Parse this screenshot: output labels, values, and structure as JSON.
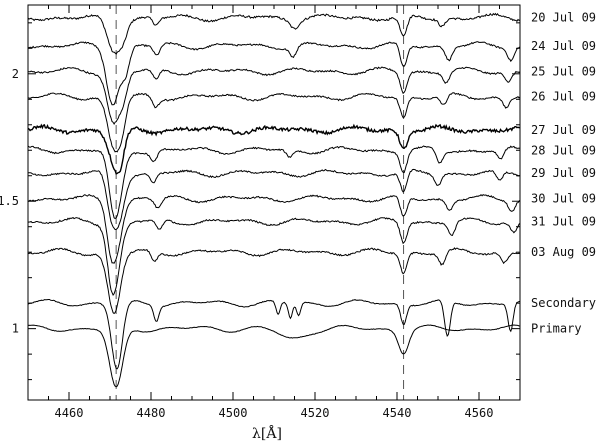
{
  "chart_data": {
    "type": "line",
    "title": "",
    "xlabel": "λ[Å]",
    "ylabel": "",
    "xlim": [
      4450,
      4570
    ],
    "ylim": [
      0.72,
      2.27
    ],
    "x_ticks": [
      4460,
      4480,
      4500,
      4520,
      4540,
      4560
    ],
    "y_ticks": [
      1,
      1.5,
      2
    ],
    "y_tick_labels": [
      "1",
      "1.5",
      "2"
    ],
    "reference_lines": [
      4471.5,
      4541.6
    ],
    "grid": false,
    "series": [
      {
        "name": "20 Jul 09",
        "offset": 2.22,
        "noise": 0.004,
        "lines": [
          [
            4470.9,
            0.13,
            1.6
          ],
          [
            4473.3,
            0.05,
            1.0
          ],
          [
            4481.2,
            0.03,
            0.8
          ],
          [
            4541.6,
            0.08,
            0.9
          ],
          [
            4551.0,
            0.03,
            0.8
          ],
          [
            4515.0,
            0.03,
            1.0
          ]
        ]
      },
      {
        "name": "24 Jul 09",
        "offset": 2.11,
        "noise": 0.003,
        "lines": [
          [
            4470.7,
            0.22,
            1.5
          ],
          [
            4473.8,
            0.1,
            1.0
          ],
          [
            4481.4,
            0.04,
            0.8
          ],
          [
            4514.7,
            0.04,
            0.8
          ],
          [
            4541.6,
            0.09,
            0.8
          ],
          [
            4552.6,
            0.05,
            0.8
          ],
          [
            4567.8,
            0.05,
            0.8
          ]
        ]
      },
      {
        "name": "25 Jul 09",
        "offset": 2.01,
        "noise": 0.003,
        "lines": [
          [
            4470.9,
            0.2,
            1.5
          ],
          [
            4473.4,
            0.08,
            1.0
          ],
          [
            4481.2,
            0.04,
            0.8
          ],
          [
            4541.6,
            0.08,
            0.8
          ],
          [
            4552.0,
            0.04,
            0.8
          ],
          [
            4567.2,
            0.04,
            0.8
          ]
        ]
      },
      {
        "name": "26 Jul 09",
        "offset": 1.91,
        "noise": 0.003,
        "lines": [
          [
            4471.0,
            0.2,
            1.5
          ],
          [
            4473.0,
            0.08,
            1.0
          ],
          [
            4481.1,
            0.04,
            0.8
          ],
          [
            4541.6,
            0.08,
            0.8
          ],
          [
            4551.4,
            0.04,
            0.8
          ],
          [
            4566.6,
            0.04,
            0.8
          ]
        ]
      },
      {
        "name": "27 Jul 09",
        "offset": 1.78,
        "noise": 0.006,
        "lines": [
          [
            4471.3,
            0.14,
            1.6
          ],
          [
            4472.6,
            0.06,
            1.0
          ],
          [
            4541.6,
            0.07,
            0.9
          ]
        ]
      },
      {
        "name": "28 Jul 09",
        "offset": 1.7,
        "noise": 0.003,
        "lines": [
          [
            4471.6,
            0.24,
            1.5
          ],
          [
            4470.5,
            0.06,
            1.0
          ],
          [
            4480.7,
            0.04,
            0.8
          ],
          [
            4513.8,
            0.03,
            0.8
          ],
          [
            4541.6,
            0.08,
            0.8
          ],
          [
            4550.4,
            0.05,
            0.8
          ],
          [
            4565.3,
            0.04,
            0.8
          ]
        ]
      },
      {
        "name": "29 Jul 09",
        "offset": 1.61,
        "noise": 0.003,
        "lines": [
          [
            4471.8,
            0.2,
            1.5
          ],
          [
            4469.9,
            0.08,
            1.0
          ],
          [
            4480.5,
            0.04,
            0.8
          ],
          [
            4541.6,
            0.08,
            0.8
          ],
          [
            4550.0,
            0.04,
            0.8
          ],
          [
            4565.0,
            0.04,
            0.8
          ]
        ]
      },
      {
        "name": "30 Jul 09",
        "offset": 1.51,
        "noise": 0.003,
        "lines": [
          [
            4471.4,
            0.2,
            1.5
          ],
          [
            4470.0,
            0.08,
            1.0
          ],
          [
            4481.7,
            0.04,
            0.8
          ],
          [
            4541.6,
            0.08,
            0.8
          ],
          [
            4552.8,
            0.04,
            0.8
          ],
          [
            4568.0,
            0.04,
            0.8
          ]
        ]
      },
      {
        "name": "31 Jul 09",
        "offset": 1.42,
        "noise": 0.003,
        "lines": [
          [
            4471.2,
            0.22,
            1.5
          ],
          [
            4470.3,
            0.08,
            1.0
          ],
          [
            4482.0,
            0.04,
            0.8
          ],
          [
            4541.6,
            0.08,
            0.8
          ],
          [
            4553.4,
            0.05,
            0.8
          ],
          [
            4568.5,
            0.04,
            0.8
          ]
        ]
      },
      {
        "name": "03 Aug 09",
        "offset": 1.3,
        "noise": 0.003,
        "lines": [
          [
            4471.0,
            0.24,
            1.5
          ],
          [
            4480.8,
            0.04,
            0.8
          ],
          [
            4541.6,
            0.08,
            0.8
          ],
          [
            4551.0,
            0.05,
            0.8
          ],
          [
            4566.2,
            0.04,
            0.8
          ]
        ]
      },
      {
        "name": "Secondary",
        "offset": 1.1,
        "noise": 0.0015,
        "lines": [
          [
            4471.7,
            0.26,
            1.3
          ],
          [
            4481.3,
            0.06,
            0.6
          ],
          [
            4511.0,
            0.05,
            0.5
          ],
          [
            4514.0,
            0.06,
            0.5
          ],
          [
            4516.0,
            0.05,
            0.5
          ],
          [
            4541.6,
            0.08,
            0.7
          ],
          [
            4552.3,
            0.14,
            0.7
          ],
          [
            4567.7,
            0.11,
            0.6
          ]
        ]
      },
      {
        "name": "Primary",
        "offset": 1.0,
        "noise": 0.001,
        "lines": [
          [
            4471.5,
            0.24,
            1.6
          ],
          [
            4514.5,
            0.04,
            3.0
          ],
          [
            4541.6,
            0.09,
            1.2
          ]
        ]
      }
    ]
  }
}
